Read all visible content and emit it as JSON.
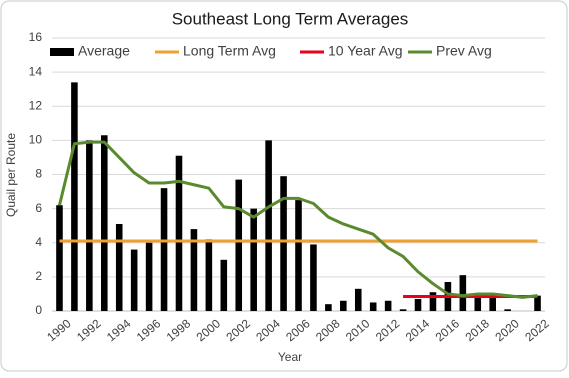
{
  "chart_data": {
    "type": "bar",
    "title": "Southeast Long Term Averages",
    "x_label": "Year",
    "y_label": "Quail per Route",
    "categories": [
      "1990",
      null,
      "1992",
      null,
      "1994",
      null,
      "1996",
      null,
      "1998",
      null,
      "2000",
      null,
      "2002",
      null,
      "2004",
      null,
      "2006",
      null,
      "2008",
      null,
      "2010",
      null,
      "2012",
      null,
      "2014",
      null,
      "2016",
      null,
      "2018",
      null,
      "2020",
      null,
      "2022"
    ],
    "series": [
      {
        "name": "Average",
        "type": "bar",
        "color": "#000000",
        "values": [
          6.2,
          13.4,
          10.0,
          10.3,
          5.1,
          3.6,
          4.0,
          7.2,
          9.1,
          4.8,
          4.2,
          3.0,
          7.7,
          6.0,
          10.0,
          7.9,
          6.5,
          3.9,
          0.4,
          0.6,
          1.3,
          0.5,
          0.6,
          0.1,
          0.7,
          1.1,
          1.7,
          2.1,
          0.8,
          0.9,
          0.1,
          0.0,
          0.9
        ]
      },
      {
        "name": "Long Term Avg",
        "type": "line",
        "color": "#f0a030",
        "values": [
          4.1,
          4.1,
          4.1,
          4.1,
          4.1,
          4.1,
          4.1,
          4.1,
          4.1,
          4.1,
          4.1,
          4.1,
          4.1,
          4.1,
          4.1,
          4.1,
          4.1,
          4.1,
          4.1,
          4.1,
          4.1,
          4.1,
          4.1,
          4.1,
          4.1,
          4.1,
          4.1,
          4.1,
          4.1,
          4.1,
          4.1,
          4.1,
          4.1
        ]
      },
      {
        "name": "10 Year Avg",
        "type": "line",
        "color": "#e8001c",
        "values": [
          null,
          null,
          null,
          null,
          null,
          null,
          null,
          null,
          null,
          null,
          null,
          null,
          null,
          null,
          null,
          null,
          null,
          null,
          null,
          null,
          null,
          null,
          null,
          0.85,
          0.85,
          0.85,
          0.85,
          0.85,
          0.85,
          0.85,
          0.85,
          0.85,
          0.85
        ]
      },
      {
        "name": "Prev Avg",
        "type": "line",
        "color": "#5a8a2e",
        "values": [
          6.2,
          9.8,
          9.9,
          9.9,
          9.0,
          8.1,
          7.5,
          7.5,
          7.6,
          7.4,
          7.2,
          6.1,
          6.0,
          5.5,
          6.1,
          6.6,
          6.6,
          6.3,
          5.5,
          5.1,
          4.8,
          4.5,
          3.7,
          3.2,
          2.3,
          1.6,
          1.0,
          0.9,
          1.0,
          1.0,
          0.9,
          0.8,
          0.9
        ]
      }
    ],
    "ylim": [
      0,
      16
    ],
    "yticks": [
      0,
      2,
      4,
      6,
      8,
      10,
      12,
      14,
      16
    ],
    "grid": true
  }
}
